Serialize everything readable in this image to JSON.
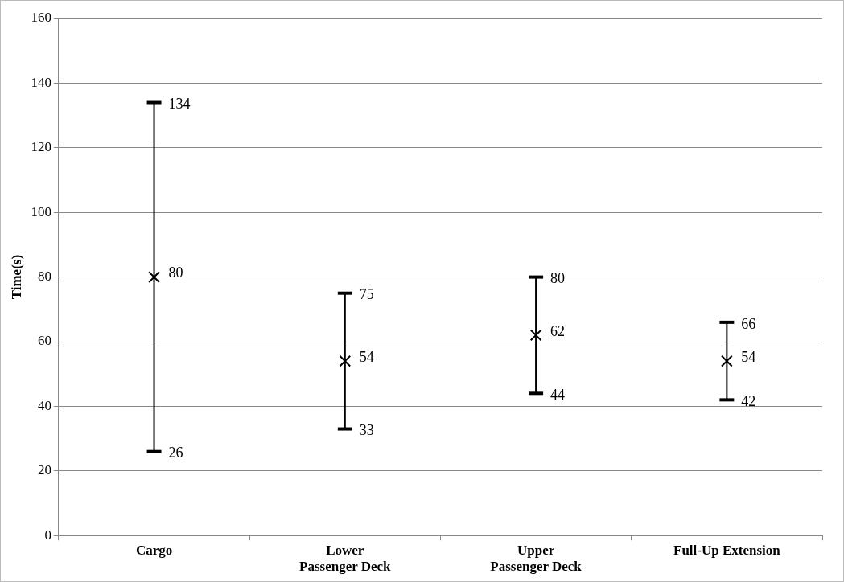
{
  "chart_data": {
    "type": "scatter",
    "ylabel": "Time(s)",
    "categories": [
      "Cargo",
      "Lower Passenger Deck",
      "Upper Passenger Deck",
      "Full-Up Extension"
    ],
    "values": [
      80,
      54,
      62,
      54
    ],
    "errors": [
      [
        26,
        134
      ],
      [
        33,
        75
      ],
      [
        44,
        80
      ],
      [
        42,
        66
      ]
    ],
    "color": "#000000",
    "marker": "cross",
    "data_labels": true,
    "annotations": [
      {
        "text": "134",
        "x": "Cargo",
        "y": 134
      },
      {
        "text": "26",
        "x": "Cargo",
        "y": 26
      },
      {
        "text": "75",
        "x": "Lower Passenger Deck",
        "y": 75
      },
      {
        "text": "33",
        "x": "Lower Passenger Deck",
        "y": 33
      },
      {
        "text": "80",
        "x": "Upper Passenger Deck",
        "y": 80
      },
      {
        "text": "44",
        "x": "Upper Passenger Deck",
        "y": 44
      },
      {
        "text": "66",
        "x": "Full-Up Extension",
        "y": 66
      },
      {
        "text": "42",
        "x": "Full-Up Extension",
        "y": 42
      }
    ],
    "ylim": [
      0,
      160
    ],
    "yticks": [
      0,
      20,
      40,
      60,
      80,
      100,
      120,
      140,
      160
    ],
    "grid": "y",
    "legend": false
  }
}
